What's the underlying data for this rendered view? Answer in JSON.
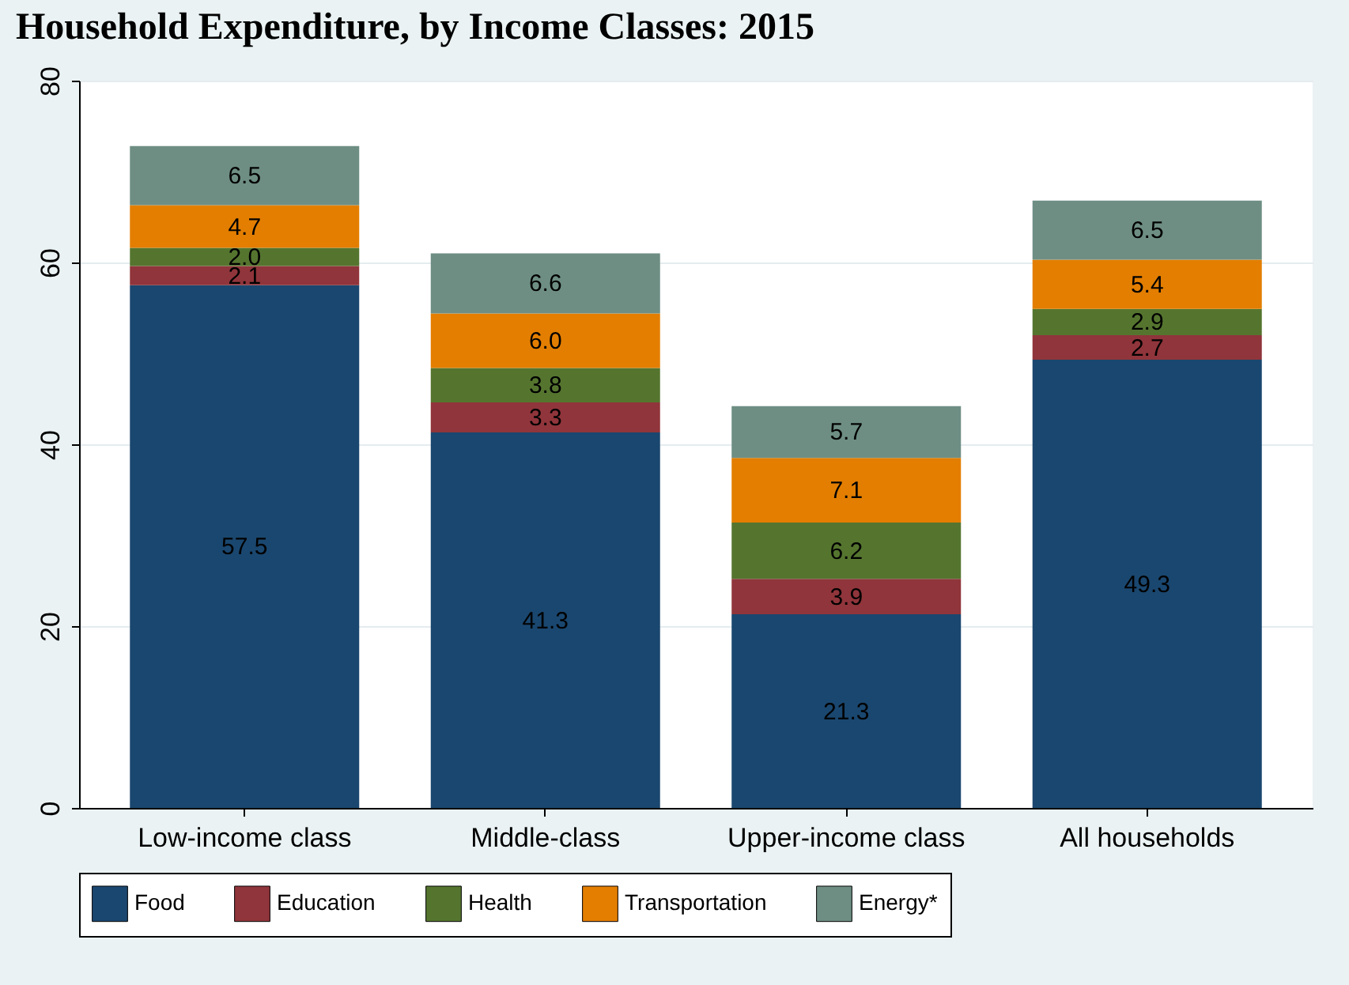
{
  "chart_data": {
    "type": "bar",
    "title": "Household Expenditure, by Income Classes: 2015",
    "categories": [
      "Low-income class",
      "Middle-class",
      "Upper-income class",
      "All households"
    ],
    "stacked": true,
    "ylim": [
      0,
      80
    ],
    "yticks": [
      0,
      20,
      40,
      60,
      80
    ],
    "grid": "y",
    "legend": "bottom",
    "series": [
      {
        "name": "Food",
        "color": "#1a476f",
        "values": [
          57.5,
          41.3,
          21.3,
          49.3
        ],
        "value_labels": [
          "57.5",
          "41.3",
          "21.3",
          "49.3"
        ]
      },
      {
        "name": "Education",
        "color": "#90353b",
        "values": [
          2.1,
          3.3,
          3.9,
          2.7
        ],
        "value_labels": [
          "2.1",
          "3.3",
          "3.9",
          "2.7"
        ]
      },
      {
        "name": "Health",
        "color": "#55752f",
        "values": [
          2.0,
          3.8,
          6.2,
          2.9
        ],
        "value_labels": [
          "2.0",
          "3.8",
          "6.2",
          "2.9"
        ]
      },
      {
        "name": "Transportation",
        "color": "#e37e00",
        "values": [
          4.7,
          6.0,
          7.1,
          5.4
        ],
        "value_labels": [
          "4.7",
          "6.0",
          "7.1",
          "5.4"
        ]
      },
      {
        "name": "Energy*",
        "color": "#6e8e84",
        "values": [
          6.5,
          6.6,
          5.7,
          6.5
        ],
        "value_labels": [
          "6.5",
          "6.6",
          "5.7",
          "6.5"
        ]
      }
    ]
  }
}
